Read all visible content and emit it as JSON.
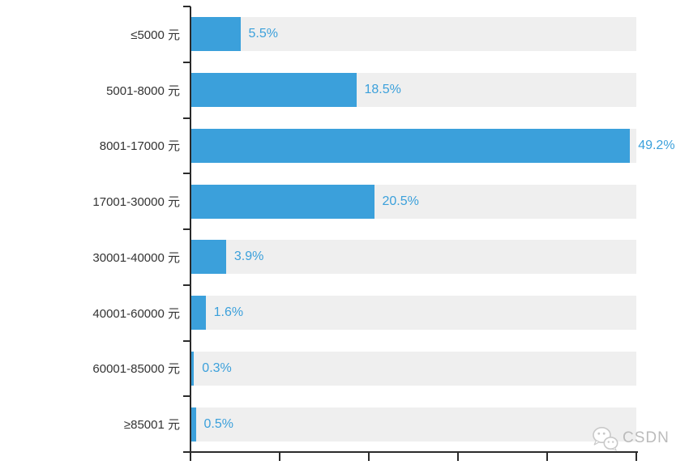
{
  "chart_data": {
    "type": "bar",
    "orientation": "horizontal",
    "title": "",
    "xlabel": "",
    "ylabel": "",
    "categories": [
      "≤5000 元",
      "5001-8000 元",
      "8001-17000 元",
      "17001-30000 元",
      "30001-40000 元",
      "40001-60000 元",
      "60001-85000 元",
      "≥85001 元"
    ],
    "values": [
      5.5,
      18.5,
      49.2,
      20.5,
      3.9,
      1.6,
      0.3,
      0.5
    ],
    "value_labels": [
      "5.5%",
      "18.5%",
      "49.2%",
      "20.5%",
      "3.9%",
      "1.6%",
      "0.3%",
      "0.5%"
    ],
    "xlim": [
      0,
      50
    ],
    "x_tick_interval": 10,
    "x_tick_labels_shown": false,
    "grid": false,
    "legend": false
  },
  "colors": {
    "bar": "#3BA0DB",
    "track": "#EFEFEF",
    "axis": "#2B2B2B",
    "category_label": "#333333",
    "value_label": "#3BA0DB",
    "watermark": "#BBBBBB"
  },
  "watermark": {
    "text": "CSDN",
    "icon": "wechat-bubbles-icon"
  }
}
